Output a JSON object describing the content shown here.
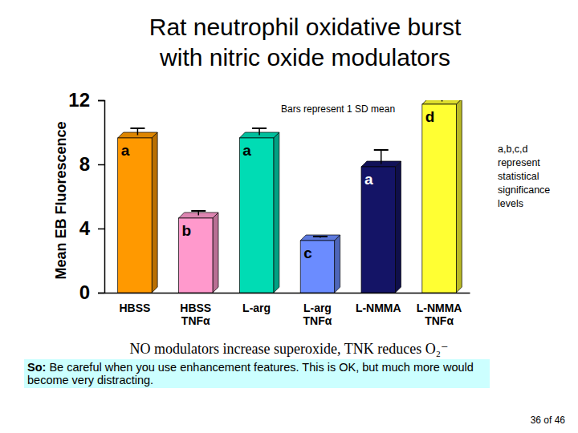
{
  "chart_data": {
    "type": "bar",
    "title": [
      "Rat neutrophil oxidative burst",
      "with nitric oxide modulators"
    ],
    "y_label": "Mean EB Fluorescence",
    "categories": [
      "HBSS",
      "HBSS TNFα",
      "L-arg",
      "L-arg TNFα",
      "L-NMMA",
      "L-NMMA TNFα"
    ],
    "values": [
      9.65,
      4.65,
      9.65,
      3.25,
      7.85,
      11.75
    ],
    "errors": [
      0.6,
      0.45,
      0.6,
      0.25,
      1.05,
      0.6
    ],
    "colors": [
      "#ff9900",
      "#ff99cc",
      "#00dcb4",
      "#6b8cff",
      "#141466",
      "#ffff33"
    ],
    "significance": [
      "a",
      "b",
      "a",
      "c",
      "a",
      "d"
    ],
    "ylim": [
      0,
      12
    ],
    "yticks": [
      0,
      4,
      8,
      12
    ],
    "grid": false,
    "annotations": [
      "Bars represent 1 SD mean",
      "a,b,c,d represent statistical significance levels"
    ],
    "caption": "NO modulators increase superoxide, TNK reduces O₂⁻",
    "note_label": "So:",
    "note": "Be careful when you use enhancement features. This is OK, but much more would become very distracting.",
    "page": "36 of 46"
  }
}
